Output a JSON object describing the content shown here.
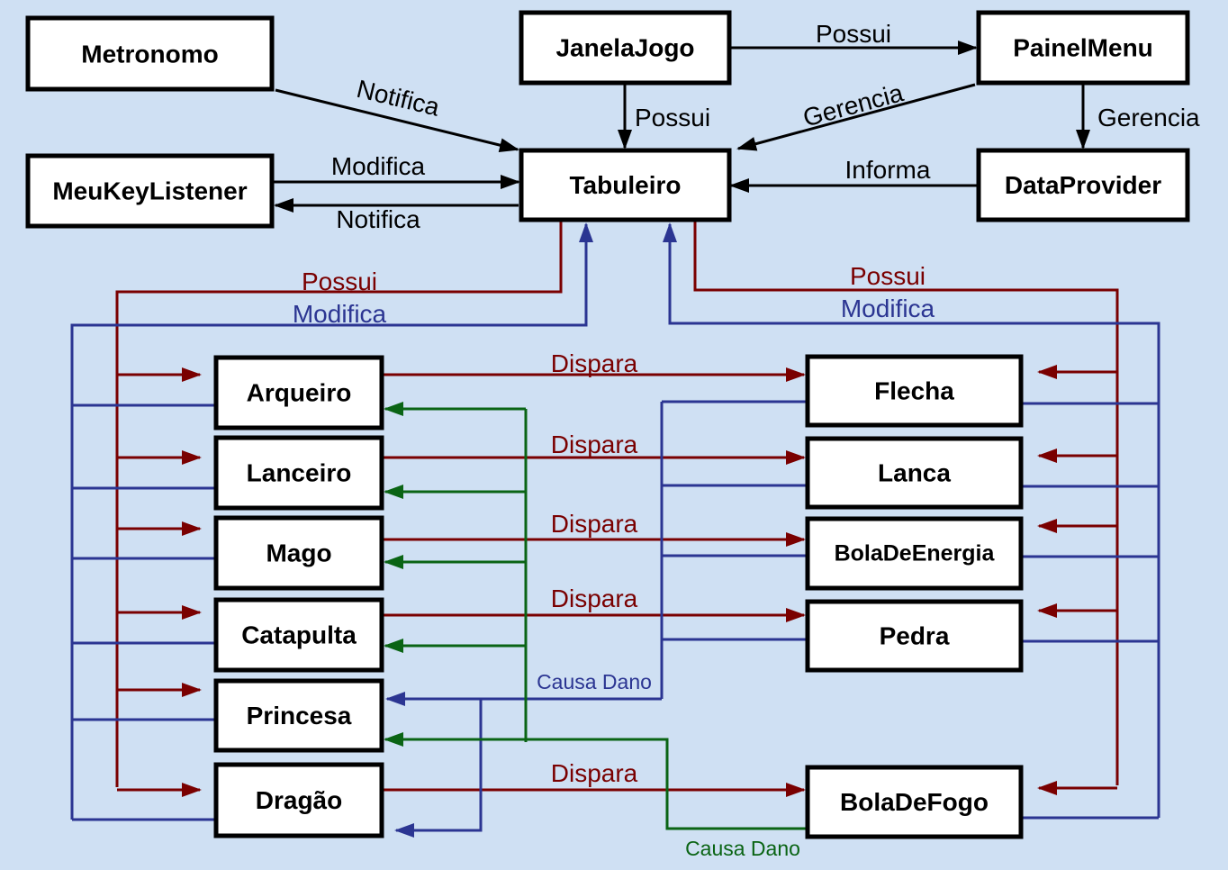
{
  "colors": {
    "background": "#cfe0f3",
    "black": "#000000",
    "possui_red": "#7a0000",
    "modifica_blue": "#2b3592",
    "dano_green": "#0a6414"
  },
  "nodes": {
    "metronomo": "Metronomo",
    "janela_jogo": "JanelaJogo",
    "painel_menu": "PainelMenu",
    "meu_key_listener": "MeuKeyListener",
    "tabuleiro": "Tabuleiro",
    "data_provider": "DataProvider",
    "arqueiro": "Arqueiro",
    "lanceiro": "Lanceiro",
    "mago": "Mago",
    "catapulta": "Catapulta",
    "princesa": "Princesa",
    "dragao": "Dragão",
    "flecha": "Flecha",
    "lanca": "Lanca",
    "bola_de_energia": "BolaDeEnergia",
    "pedra": "Pedra",
    "bola_de_fogo": "BolaDeFogo"
  },
  "edges": {
    "metronomo_notifica": "Notifica",
    "janela_possui_painel": "Possui",
    "janela_possui_tabuleiro": "Possui",
    "painel_gerencia_tabuleiro": "Gerencia",
    "painel_gerencia_data": "Gerencia",
    "key_modifica": "Modifica",
    "tabuleiro_notifica_key": "Notifica",
    "data_informa": "Informa",
    "possui_left": "Possui",
    "modifica_left": "Modifica",
    "possui_right": "Possui",
    "modifica_right": "Modifica",
    "dispara_arqueiro": "Dispara",
    "dispara_lanceiro": "Dispara",
    "dispara_mago": "Dispara",
    "dispara_catapulta": "Dispara",
    "dispara_dragao": "Dispara",
    "causa_dano_blue": "Causa Dano",
    "causa_dano_green": "Causa Dano"
  }
}
